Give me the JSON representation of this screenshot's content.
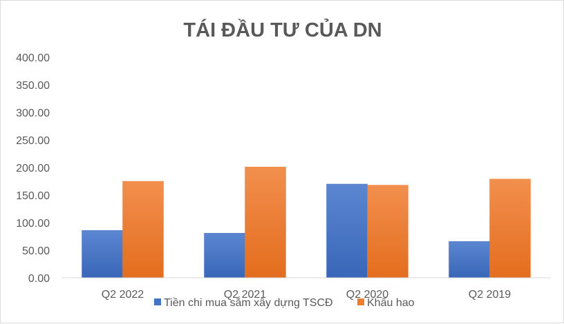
{
  "chart_data": {
    "type": "bar",
    "title": "TÁI ĐẦU TƯ CỦA DN",
    "categories": [
      "Q2 2022",
      "Q2 2021",
      "Q2 2020",
      "Q2 2019"
    ],
    "series": [
      {
        "name": "Tiền chi mua sắm xây dựng TSCĐ",
        "values": [
          86,
          81,
          170,
          66
        ],
        "color": "#4472c4"
      },
      {
        "name": "Khấu hao",
        "values": [
          175,
          201,
          168,
          179
        ],
        "color": "#ed7d31"
      }
    ],
    "yticks": [
      "0.00",
      "50.00",
      "100.00",
      "150.00",
      "200.00",
      "250.00",
      "300.00",
      "350.00",
      "400.00"
    ],
    "ylim": [
      0,
      400
    ],
    "grid": false,
    "legend": "bottom"
  }
}
